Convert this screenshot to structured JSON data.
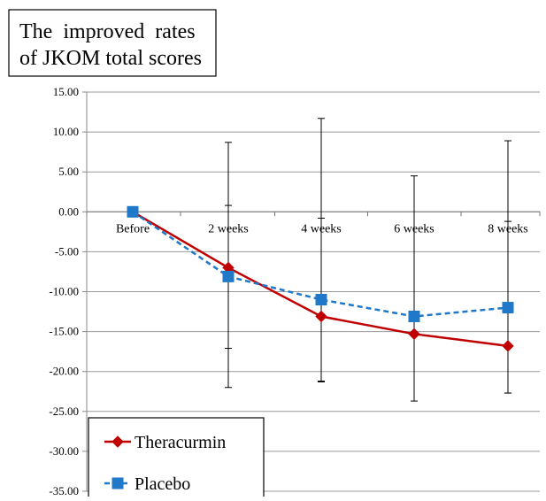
{
  "chart_data": {
    "type": "line",
    "title_lines": [
      "The  improved  rates",
      "of JKOM total scores"
    ],
    "categories": [
      "Before",
      "2 weeks",
      "4 weeks",
      "6 weeks",
      "8 weeks"
    ],
    "ylim": [
      -35,
      15
    ],
    "yticks": [
      "15.00",
      "10.00",
      "5.00",
      "0.00",
      "-5.00",
      "-10.00",
      "-15.00",
      "-20.00",
      "-25.00",
      "-30.00",
      "-35.00"
    ],
    "grid": true,
    "legend_position": "bottom-left",
    "series": [
      {
        "name": "Theracurmin",
        "color": "#c00000",
        "marker": "diamond",
        "line_style": "solid",
        "values": [
          0,
          -7.0,
          -13.1,
          -15.3,
          -16.8
        ],
        "error": [
          null,
          [
            -22.0,
            8.7
          ],
          [
            -21.3,
            11.7
          ],
          [
            -23.7,
            4.5
          ],
          [
            -22.7,
            8.9
          ]
        ]
      },
      {
        "name": "Placebo",
        "color": "#1f78c8",
        "marker": "square",
        "line_style": "dashed",
        "values": [
          0,
          -8.1,
          -11.0,
          -13.1,
          -12.0
        ],
        "error": [
          null,
          [
            -17.1,
            0.8
          ],
          [
            -21.2,
            -0.8
          ],
          null,
          [
            -22.7,
            -1.2
          ]
        ]
      }
    ]
  }
}
